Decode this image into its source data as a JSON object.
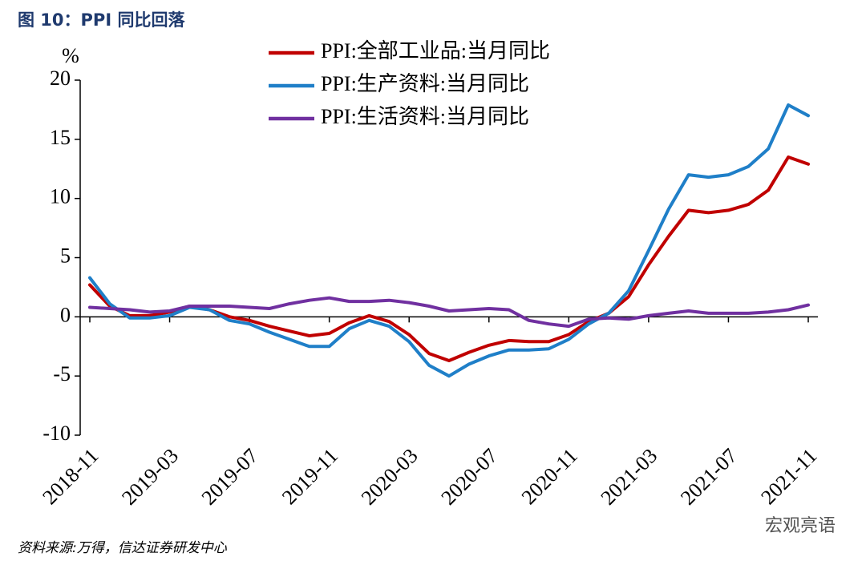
{
  "chart_data": {
    "type": "line",
    "title": "图 10：PPI 同比回落",
    "y_unit": "%",
    "source": "资料来源:万得，信达证券研发中心",
    "watermark": "宏观亮语",
    "categories": [
      "2018-11",
      null,
      null,
      null,
      "2019-03",
      null,
      null,
      null,
      "2019-07",
      null,
      null,
      null,
      "2019-11",
      null,
      null,
      null,
      "2020-03",
      null,
      null,
      null,
      "2020-07",
      null,
      null,
      null,
      "2020-11",
      null,
      null,
      null,
      "2021-03",
      null,
      null,
      null,
      "2021-07",
      null,
      null,
      null,
      "2021-11"
    ],
    "series": [
      {
        "name": "PPI:全部工业品:当月同比",
        "color": "#c00000",
        "values": [
          2.7,
          0.9,
          0.1,
          0.1,
          0.4,
          0.9,
          0.6,
          0.0,
          -0.3,
          -0.8,
          -1.2,
          -1.6,
          -1.4,
          -0.5,
          0.1,
          -0.4,
          -1.5,
          -3.1,
          -3.7,
          -3.0,
          -2.4,
          -2.0,
          -2.1,
          -2.1,
          -1.5,
          -0.4,
          0.3,
          1.7,
          4.4,
          6.8,
          9.0,
          8.8,
          9.0,
          9.5,
          10.7,
          13.5,
          12.9
        ]
      },
      {
        "name": "PPI:生产资料:当月同比",
        "color": "#1f7fc8",
        "values": [
          3.3,
          1.1,
          -0.1,
          -0.1,
          0.1,
          0.8,
          0.6,
          -0.3,
          -0.6,
          -1.3,
          -1.9,
          -2.5,
          -2.5,
          -1.0,
          -0.3,
          -0.8,
          -2.1,
          -4.1,
          -5.0,
          -4.0,
          -3.3,
          -2.8,
          -2.8,
          -2.7,
          -1.9,
          -0.6,
          0.3,
          2.2,
          5.6,
          9.1,
          12.0,
          11.8,
          12.0,
          12.7,
          14.2,
          17.9,
          17.0
        ]
      },
      {
        "name": "PPI:生活资料:当月同比",
        "color": "#7030a0",
        "values": [
          0.8,
          0.7,
          0.6,
          0.4,
          0.5,
          0.9,
          0.9,
          0.9,
          0.8,
          0.7,
          1.1,
          1.4,
          1.6,
          1.3,
          1.3,
          1.4,
          1.2,
          0.9,
          0.5,
          0.6,
          0.7,
          0.6,
          -0.3,
          -0.6,
          -0.8,
          -0.2,
          -0.1,
          -0.2,
          0.1,
          0.3,
          0.5,
          0.3,
          0.3,
          0.3,
          0.4,
          0.6,
          1.0
        ]
      }
    ],
    "ylim": [
      -10,
      20
    ],
    "yticks": [
      -10,
      -5,
      0,
      5,
      10,
      15,
      20
    ],
    "legend": "top"
  }
}
